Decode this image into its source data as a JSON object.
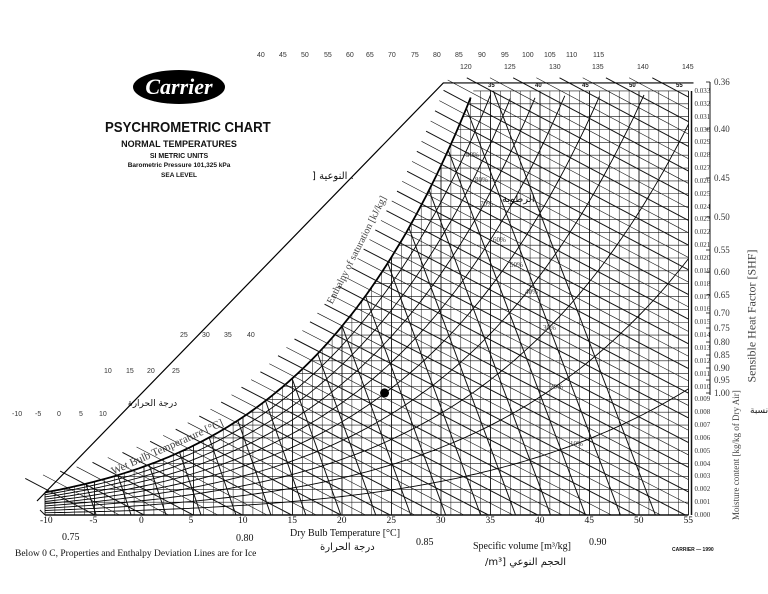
{
  "header": {
    "logo": "Carrier",
    "title": "PSYCHROMETRIC CHART",
    "subtitle": "NORMAL TEMPERATURES",
    "units": "SI METRIC UNITS",
    "pressure": "Barometric Pressure 101,325 kPa",
    "level": "SEA LEVEL"
  },
  "footer": {
    "note": "Below 0  C, Properties and Enthalpy Deviation Lines are for Ice",
    "credit": "CARRIER — 1990"
  },
  "arabic": {
    "temperature_bottom": "درجة الحرارة",
    "temperature_left": "درجة الحرارة",
    "specific_upper": ". النوعية [",
    "humidity": "الرطوبة",
    "ratio": "نسبة",
    "specific_volume": "الحجم النوعي [m³/"
  },
  "chart_data": {
    "type": "line",
    "title": "PSYCHROMETRIC CHART",
    "xlabel": "Dry Bulb Temperature [°C]",
    "ylabel": "Moisture content [kg/kg of Dry Air]",
    "y2label": "Sensible Heat Factor [SHF]",
    "wet_bulb_label": "Wet Bulb Temperature [°C]",
    "enthalpy_label": "Enthalpy of saturation [kJ/kg]",
    "volume_label": "Specific volume [m³/kg]",
    "xlim": [
      -10,
      55
    ],
    "ylim": [
      0,
      0.033
    ],
    "grid": true,
    "x_ticks": [
      "-10",
      "-5",
      "0",
      "5",
      "10",
      "15",
      "20",
      "25",
      "30",
      "35",
      "40",
      "45",
      "50",
      "55"
    ],
    "y_ticks": [
      "0.000",
      "0.001",
      "0.002",
      "0.003",
      "0.004",
      "0.005",
      "0.006",
      "0.007",
      "0.008",
      "0.009",
      "0.010",
      "0.011",
      "0.012",
      "0.013",
      "0.014",
      "0.015",
      "0.016",
      "0.017",
      "0.018",
      "0.019",
      "0.020",
      "0.021",
      "0.022",
      "0.023",
      "0.024",
      "0.025",
      "0.026",
      "0.027",
      "0.028",
      "0.029",
      "0.030",
      "0.031",
      "0.032",
      "0.033"
    ],
    "shf_ticks": [
      "0.36",
      "0.40",
      "0.45",
      "0.50",
      "0.55",
      "0.60",
      "0.65",
      "0.70",
      "0.75",
      "0.80",
      "0.85",
      "0.90",
      "0.95",
      "1.00"
    ],
    "relative_humidity_curves": [
      "10%",
      "20%",
      "30%",
      "40%",
      "50%",
      "60%",
      "70%",
      "80%",
      "90%"
    ],
    "specific_volume_labels": [
      "0.75",
      "0.80",
      "0.85",
      "0.90"
    ],
    "top_temps": [
      "35",
      "40",
      "45",
      "50",
      "55"
    ],
    "enthalpy_scale_row1": [
      "40",
      "45",
      "50",
      "55",
      "60",
      "65",
      "70",
      "75",
      "80",
      "85",
      "90",
      "95",
      "100",
      "105",
      "110",
      "115"
    ],
    "enthalpy_scale_row2": [
      "120",
      "125",
      "130",
      "135",
      "140",
      "145"
    ],
    "scale_row_a": [
      "25",
      "30",
      "35",
      "40"
    ],
    "scale_row_b": [
      "10",
      "15",
      "20",
      "25"
    ],
    "scale_row_c": [
      "-10",
      "-5",
      "0",
      "5",
      "10"
    ],
    "marked_point": {
      "x": 24.3,
      "y": 0.0095
    }
  }
}
